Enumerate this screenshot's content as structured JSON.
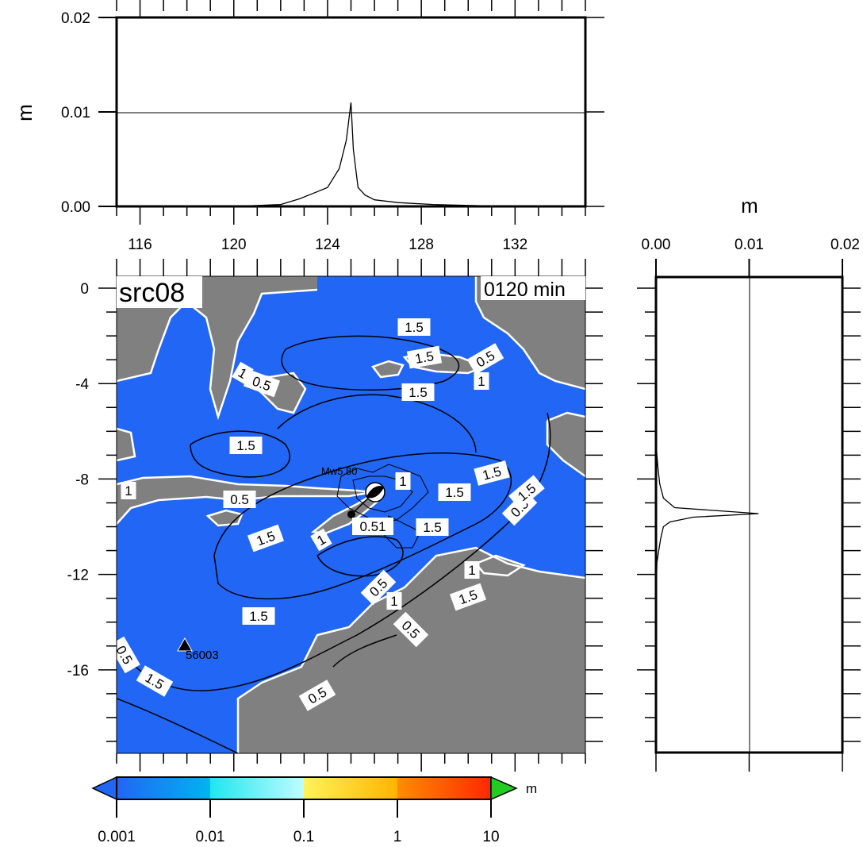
{
  "map": {
    "source_label": "src08",
    "time_label": "0120 min",
    "lon_ticks": [
      "116",
      "120",
      "124",
      "128",
      "132"
    ],
    "lat_ticks": [
      "0",
      "-4",
      "-8",
      "-12",
      "-16"
    ],
    "event_label": "Mw5.80",
    "station_label": "56003",
    "contour_labels": [
      "0.5",
      "1",
      "1.5",
      "1.5",
      "1",
      "0.5",
      "1",
      "1.5",
      "1",
      "0.5",
      "1.5",
      "1.5",
      "1.5",
      "1.5",
      "0.5",
      "1.5",
      "0.51",
      "1.5",
      "1",
      "0.5",
      "1",
      "1.5",
      "1.5",
      "0.5",
      "1.5",
      "0.5",
      "0.5",
      "1"
    ],
    "colors": {
      "ocean": "#2166f5",
      "land": "#808080",
      "coast": "#ffffff",
      "contour": "#000000"
    }
  },
  "top_profile": {
    "ylabel": "m",
    "y_ticks": [
      "0.00",
      "0.01",
      "0.02"
    ],
    "ylim": [
      0,
      0.02
    ]
  },
  "right_profile": {
    "xlabel": "m",
    "x_ticks": [
      "0.00",
      "0.01",
      "0.02"
    ],
    "xlim": [
      0,
      0.02
    ]
  },
  "colorbar": {
    "unit": "m",
    "tick_labels": [
      "0.001",
      "0.01",
      "0.1",
      "1",
      "10"
    ],
    "colors": [
      "#2166f5",
      "#00c8f5",
      "#c8ffff",
      "#ffd200",
      "#ff5a00",
      "#22cc22"
    ]
  },
  "chart_data": [
    {
      "type": "line",
      "ylabel": "m",
      "ylim": [
        0,
        0.02
      ],
      "xlim": [
        115,
        135
      ],
      "x": [
        120,
        122,
        122.8,
        123.5,
        124.0,
        124.5,
        124.8,
        125.0,
        125.1,
        125.3,
        125.6,
        126.0,
        127.0,
        128.5,
        130.0,
        132.0
      ],
      "values": [
        0.0,
        0.0002,
        0.0008,
        0.0015,
        0.002,
        0.004,
        0.007,
        0.011,
        0.006,
        0.002,
        0.0012,
        0.0007,
        0.0004,
        0.0002,
        0.0001,
        0.0
      ]
    },
    {
      "type": "line",
      "xlabel": "m",
      "xlim": [
        0,
        0.02
      ],
      "ylim": [
        -19.5,
        0.5
      ],
      "y": [
        -6.5,
        -7.5,
        -8.2,
        -8.8,
        -9.2,
        -9.45,
        -9.6,
        -9.8,
        -10.0,
        -10.5,
        -11.0,
        -11.5,
        -13.0
      ],
      "values": [
        0.0,
        0.0002,
        0.0004,
        0.0008,
        0.002,
        0.011,
        0.004,
        0.0015,
        0.0008,
        0.0005,
        0.0003,
        0.0001,
        0.0
      ]
    }
  ]
}
